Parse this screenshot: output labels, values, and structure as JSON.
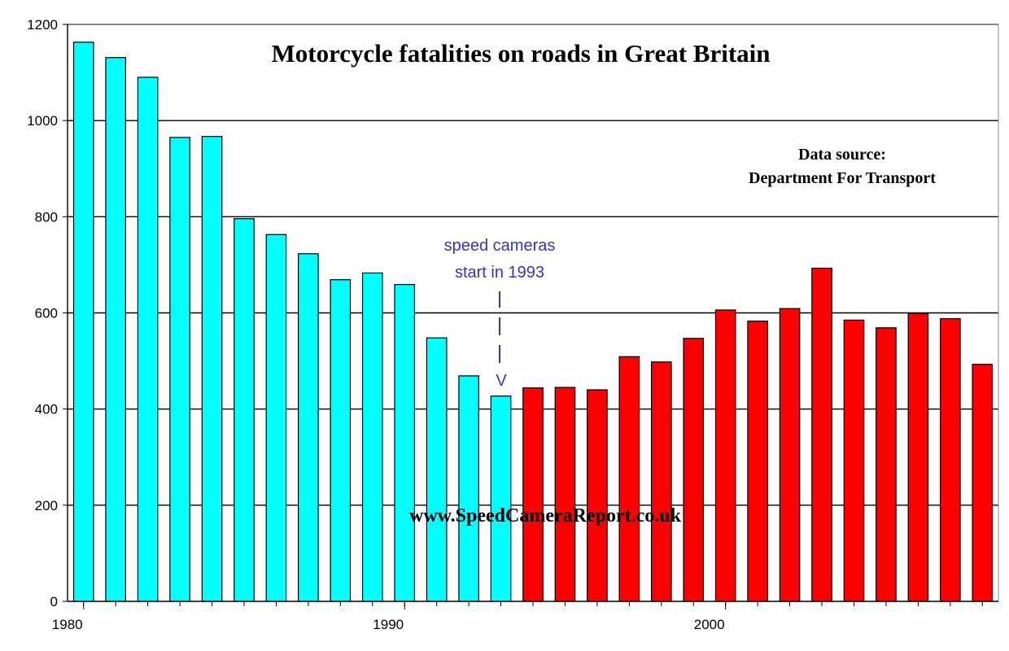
{
  "chart_data": {
    "type": "bar",
    "title": "Motorcycle fatalities on roads in Great Britain",
    "xlabel": "",
    "ylabel": "",
    "ylim": [
      0,
      1200
    ],
    "yticks": [
      0,
      200,
      400,
      600,
      800,
      1000,
      1200
    ],
    "xtick_labels": [
      {
        "year": 1980,
        "label": "1980"
      },
      {
        "year": 1990,
        "label": "1990"
      },
      {
        "year": 2000,
        "label": "2000"
      }
    ],
    "categories": [
      1980,
      1981,
      1982,
      1983,
      1984,
      1985,
      1986,
      1987,
      1988,
      1989,
      1990,
      1991,
      1992,
      1993,
      1994,
      1995,
      1996,
      1997,
      1998,
      1999,
      2000,
      2001,
      2002,
      2003,
      2004,
      2005,
      2006,
      2007,
      2008
    ],
    "values": [
      1163,
      1131,
      1090,
      965,
      967,
      796,
      763,
      723,
      669,
      683,
      659,
      548,
      469,
      427,
      444,
      445,
      440,
      509,
      498,
      547,
      606,
      583,
      609,
      693,
      585,
      569,
      599,
      588,
      493
    ],
    "series_colors": {
      "before_1994": "#00ffff",
      "from_1994": "#ff0000"
    },
    "color_split_year": 1994,
    "grid": true,
    "source_line1": "Data source:",
    "source_line2": "Department For Transport",
    "annotation_line1": "speed cameras",
    "annotation_line2": "start in 1993",
    "annotation_arrow_head": "V",
    "annotation_year": 1993,
    "watermark": "www.SpeedCameraReport.co.uk"
  }
}
